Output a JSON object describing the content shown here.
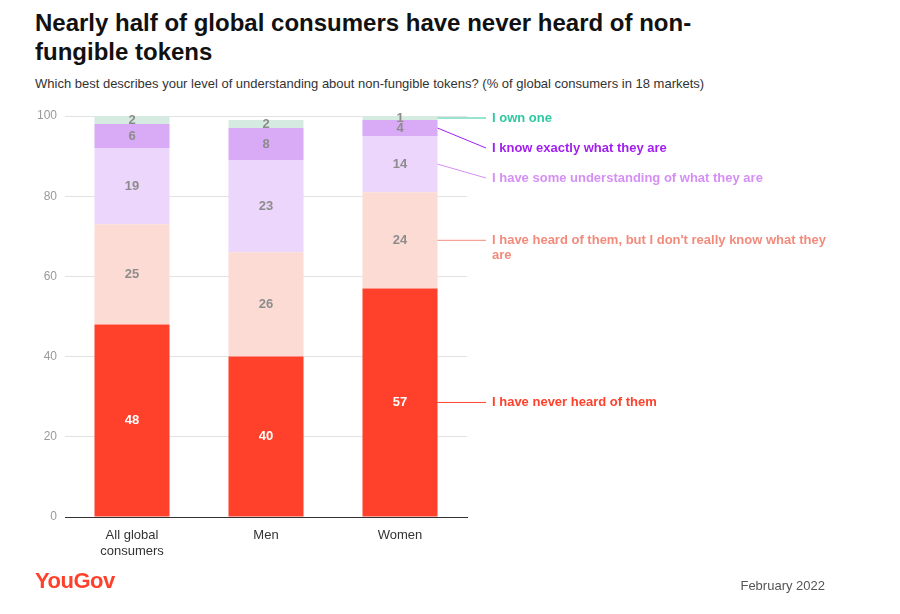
{
  "chart_data": {
    "type": "bar",
    "title": "Nearly half of global consumers have never heard of non-fungible tokens",
    "subtitle": "Which best describes your level of understanding about non-fungible tokens? (% of global consumers in 18 markets)",
    "categories": [
      "All global consumers",
      "Men",
      "Women"
    ],
    "series": [
      {
        "name": "I have never heard of them",
        "color": "#ff412c",
        "values": [
          48,
          40,
          57
        ]
      },
      {
        "name": "I have heard of them, but I don't really know what they are",
        "color": "#fddbd5",
        "values": [
          25,
          26,
          24
        ]
      },
      {
        "name": "I have some understanding of what they are",
        "color": "#ecd6fc",
        "values": [
          19,
          23,
          14
        ]
      },
      {
        "name": "I know exactly what they are",
        "color": "#d9aaf6",
        "values": [
          6,
          8,
          4
        ]
      },
      {
        "name": "I own one",
        "color": "#d5ebe2",
        "values": [
          2,
          2,
          1
        ]
      }
    ],
    "stacked": true,
    "data_labels": true,
    "legend": "right",
    "ylim": [
      0,
      100
    ],
    "yticks": [
      0,
      20,
      40,
      60,
      80,
      100
    ],
    "grid": true,
    "logo": "YouGov",
    "date": "February 2022"
  }
}
